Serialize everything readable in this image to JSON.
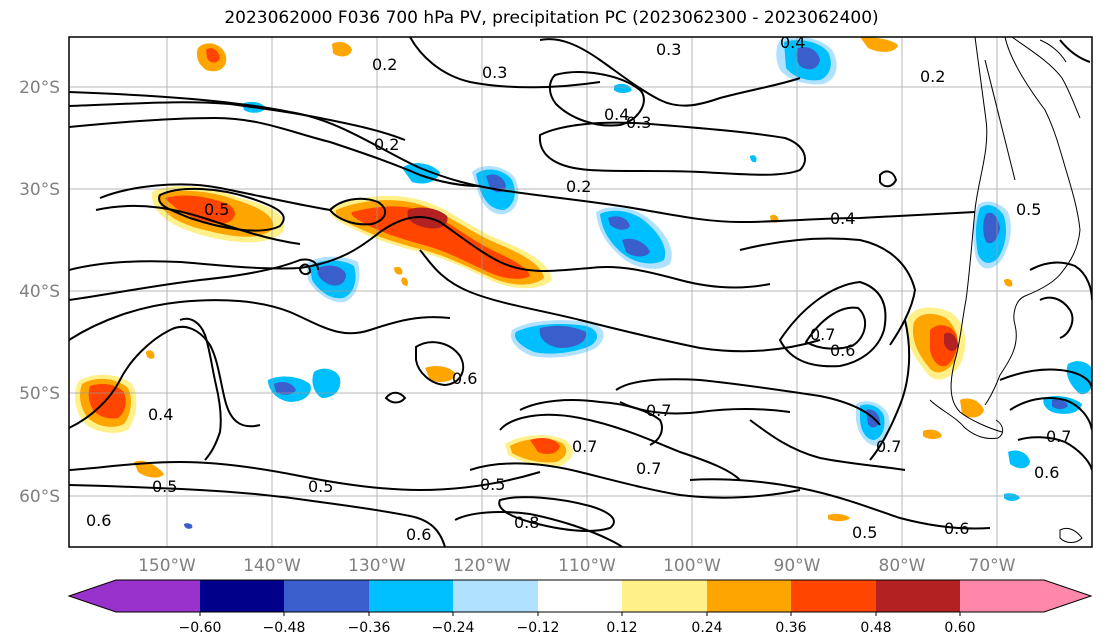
{
  "title": "2023062000 F036 700 hPa PV, precipitation PC (2023062300 - 2023062400)",
  "map": {
    "lat_labels": [
      "20°S",
      "30°S",
      "40°S",
      "50°S",
      "60°S"
    ],
    "lon_labels": [
      "150°W",
      "140°W",
      "130°W",
      "120°W",
      "110°W",
      "100°W",
      "90°W",
      "80°W",
      "70°W"
    ],
    "pv_contour_labels": [
      {
        "text": "0.2"
      },
      {
        "text": "0.3"
      },
      {
        "text": "0.3"
      },
      {
        "text": "0.4"
      },
      {
        "text": "0.4"
      },
      {
        "text": "0.3"
      },
      {
        "text": "0.2"
      },
      {
        "text": "0.2"
      },
      {
        "text": "0.4"
      },
      {
        "text": "0.5"
      },
      {
        "text": "0.2"
      },
      {
        "text": "0.5"
      },
      {
        "text": "0.7"
      },
      {
        "text": "0.6"
      },
      {
        "text": "0.6"
      },
      {
        "text": "0.4"
      },
      {
        "text": "0.7"
      },
      {
        "text": "0.7"
      },
      {
        "text": "0.7"
      },
      {
        "text": "0.7"
      },
      {
        "text": "0.6"
      },
      {
        "text": "0.5"
      },
      {
        "text": "0.5"
      },
      {
        "text": "0.5"
      },
      {
        "text": "0.8"
      },
      {
        "text": "0.6"
      },
      {
        "text": "0.6"
      },
      {
        "text": "0.5"
      },
      {
        "text": "0.6"
      },
      {
        "text": "0.7"
      }
    ]
  },
  "colorbar": {
    "ticks": [
      "−0.60",
      "−0.48",
      "−0.36",
      "−0.24",
      "−0.12",
      "0.12",
      "0.24",
      "0.36",
      "0.48",
      "0.60"
    ],
    "colors": [
      "#9932cc",
      "#00008b",
      "#3a5fcd",
      "#00bfff",
      "#b0e2ff",
      "#ffffff",
      "#fff08a",
      "#ffa500",
      "#ff4500",
      "#b22222",
      "#ff88aa"
    ]
  }
}
